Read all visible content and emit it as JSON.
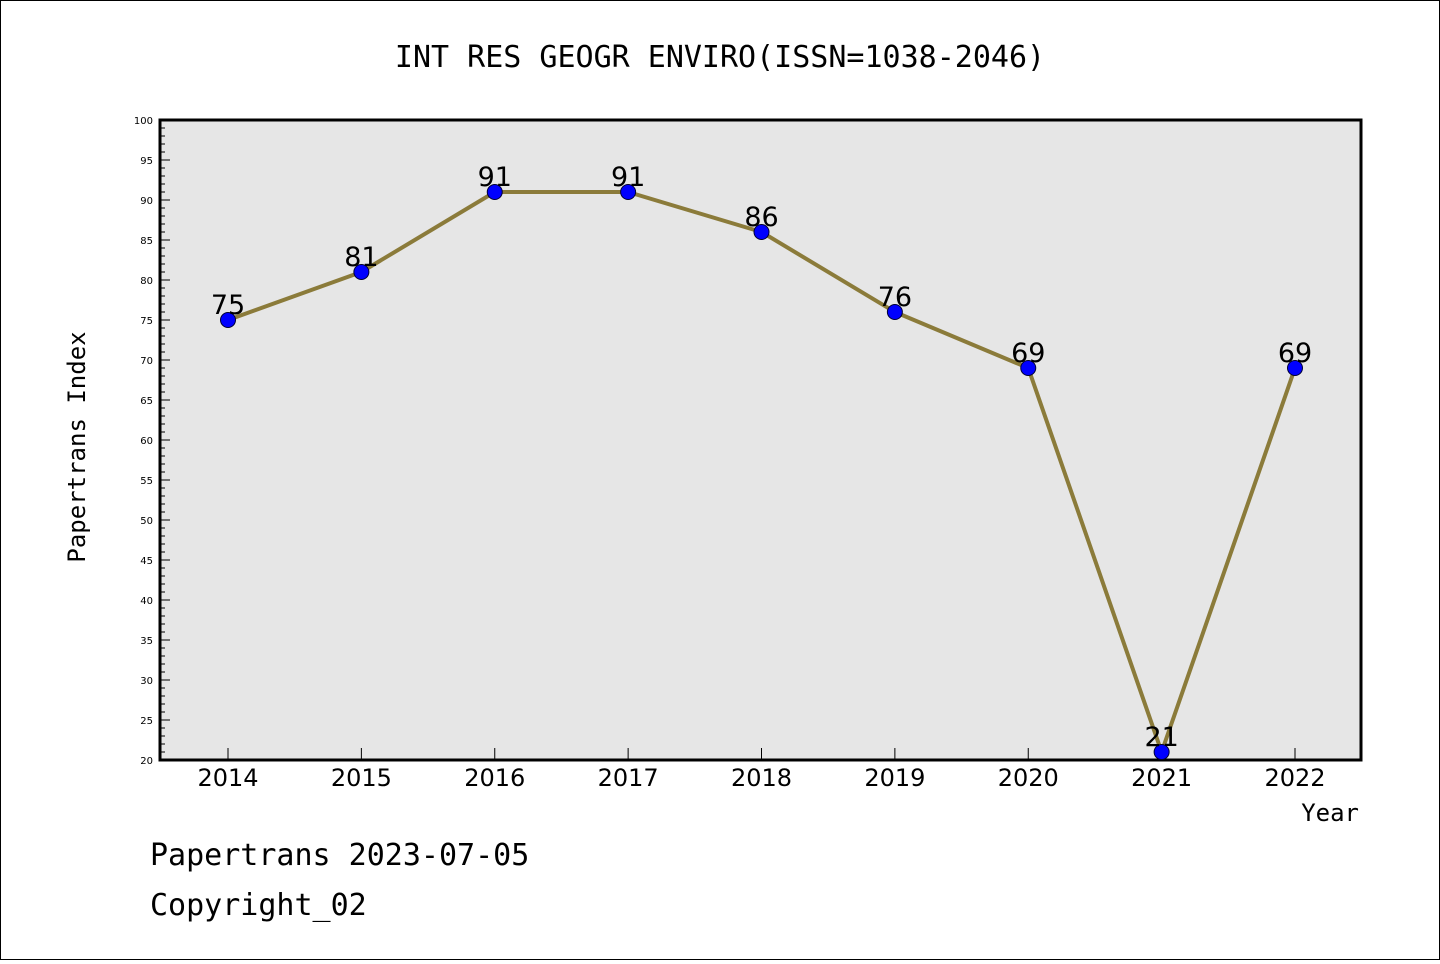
{
  "chart_data": {
    "type": "line",
    "title": "INT RES GEOGR ENVIRO(ISSN=1038-2046)",
    "xlabel": "Year",
    "ylabel": "Papertrans Index",
    "categories": [
      "2014",
      "2015",
      "2016",
      "2017",
      "2018",
      "2019",
      "2020",
      "2021",
      "2022"
    ],
    "values": [
      75,
      81,
      91,
      91,
      86,
      76,
      69,
      21,
      69
    ],
    "ylim": [
      20,
      100
    ],
    "ytick_step": 5,
    "grid": false,
    "colors": {
      "line": "#8B7B3A",
      "marker": "#0000FF",
      "plot_background": "#E6E6E6"
    }
  },
  "footer": {
    "line1": "Papertrans 2023-07-05",
    "line2": "Copyright_02"
  }
}
